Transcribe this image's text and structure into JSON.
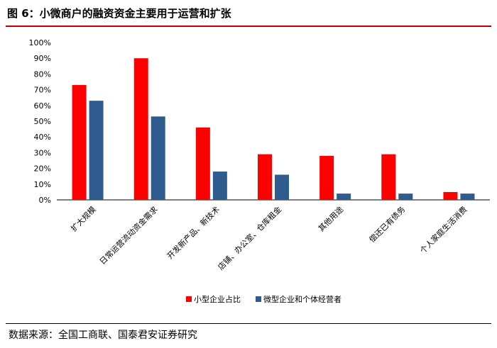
{
  "title": "图 6：小微商户的融资资金主要用于运营和扩张",
  "source": "数据来源：全国工商联、国泰君安证券研究",
  "colors": {
    "small": "#ff0000",
    "micro": "#2f5c8f",
    "title_rule": "#c00000"
  },
  "chart_data": {
    "type": "bar",
    "categories": [
      "扩大规模",
      "日常运营流动资金需求",
      "开发新产品、新技术",
      "店铺、办公室、仓库租金",
      "其他用途",
      "偿还已有债务",
      "个人家庭生活消费"
    ],
    "series": [
      {
        "name": "小型企业占比",
        "values": [
          73,
          90,
          46,
          29,
          28,
          29,
          5
        ]
      },
      {
        "name": "微型企业和个体经营者",
        "values": [
          63,
          53,
          18,
          16,
          4,
          4,
          4
        ]
      }
    ],
    "yticks": [
      "0%",
      "10%",
      "20%",
      "30%",
      "40%",
      "50%",
      "60%",
      "70%",
      "80%",
      "90%",
      "100%"
    ],
    "ylim": [
      0,
      100
    ],
    "legend": "bottom-center",
    "grid": false
  }
}
